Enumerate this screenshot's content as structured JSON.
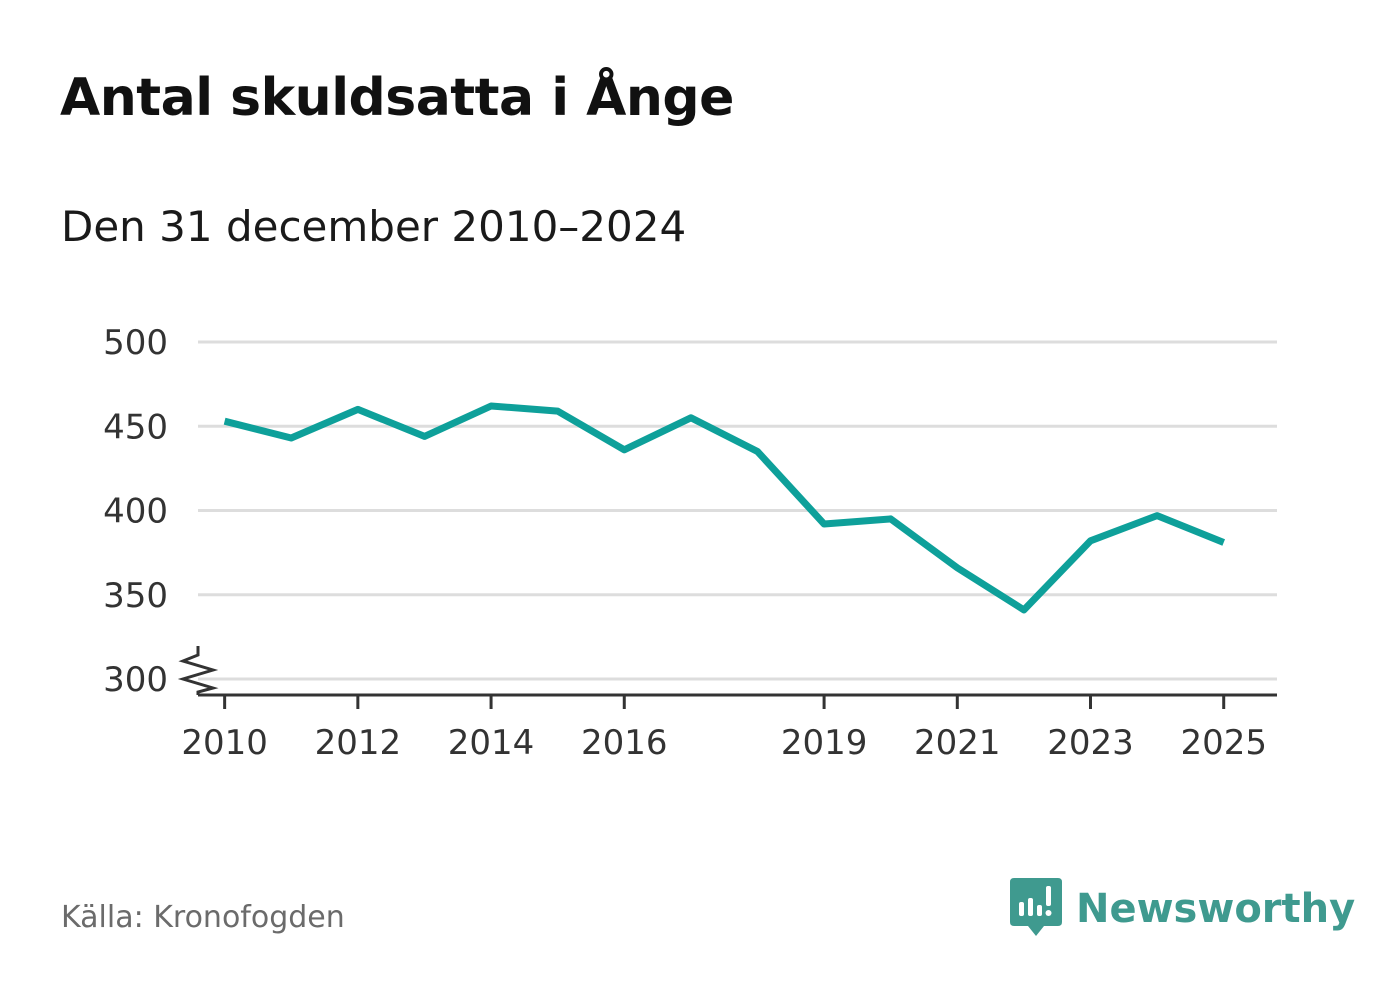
{
  "title": "Antal skuldsatta i Ånge",
  "subtitle": "Den 31 december 2010–2024",
  "source": "Källa: Kronofogden",
  "brand": {
    "name": "Newsworthy",
    "icon": "newsworthy-logo-icon",
    "color": "#3f9a8f"
  },
  "colors": {
    "line": "#0ea09a",
    "grid": "#dddddd",
    "axis": "#333333",
    "tick_text": "#333333"
  },
  "chart_data": {
    "type": "line",
    "title": "Antal skuldsatta i Ånge",
    "subtitle": "Den 31 december 2010–2024",
    "xlabel": "",
    "ylabel": "",
    "xlim": [
      2009.6,
      2025.8
    ],
    "ylim": [
      300,
      500
    ],
    "y_ticks": [
      300,
      350,
      400,
      450,
      500
    ],
    "y_tick_labels": [
      "300",
      "350",
      "400",
      "450",
      "500"
    ],
    "x_ticks": [
      2010,
      2012,
      2014,
      2016,
      2019,
      2021,
      2023,
      2025
    ],
    "x_tick_labels": [
      "2010",
      "2012",
      "2014",
      "2016",
      "2019",
      "2021",
      "2023",
      "2025"
    ],
    "axis_break": true,
    "grid": true,
    "series": [
      {
        "name": "Antal skuldsatta",
        "x": [
          2010,
          2011,
          2012,
          2013,
          2014,
          2015,
          2016,
          2017,
          2018,
          2019,
          2020,
          2021,
          2022,
          2023,
          2024,
          2025
        ],
        "values": [
          453,
          443,
          460,
          444,
          462,
          459,
          436,
          455,
          435,
          392,
          395,
          366,
          341,
          382,
          397,
          381
        ]
      }
    ]
  }
}
